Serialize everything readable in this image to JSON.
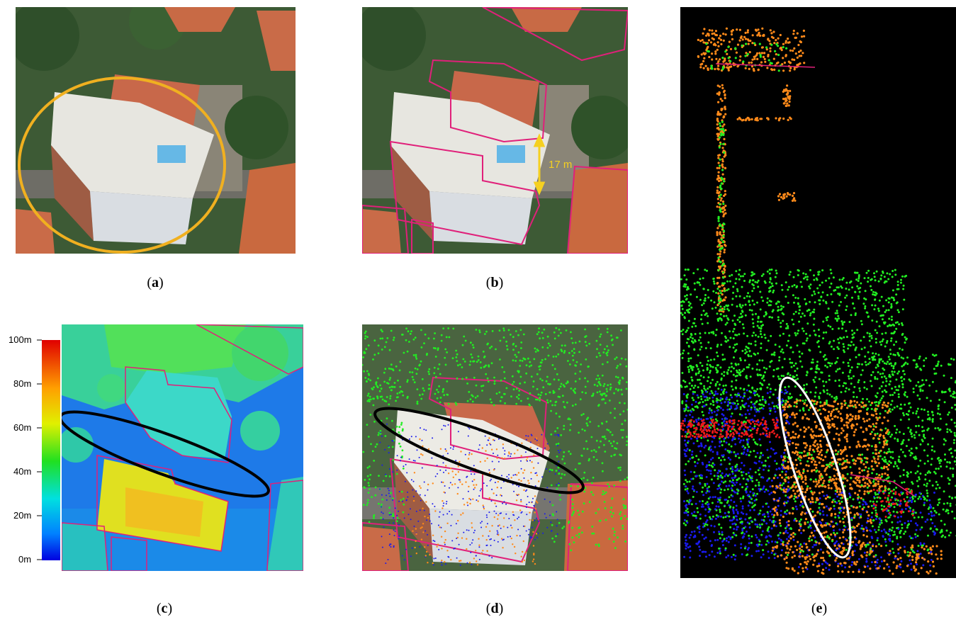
{
  "captions": {
    "a": "a",
    "b": "b",
    "c": "c",
    "d": "d",
    "e": "e"
  },
  "panel_b": {
    "measure_label": "17 m"
  },
  "panel_c": {
    "colorbar_ticks": [
      "100m",
      "80m",
      "60m",
      "40m",
      "20m",
      "0m"
    ]
  },
  "colors": {
    "highlight_ellipse": "#f0b020",
    "building_outline": "#e0207a",
    "measure_arrow": "#f5d020",
    "error_ellipse": "#000000",
    "pointcloud_ellipse": "#ffffff",
    "point_green": "#22ee22",
    "point_orange": "#ff8a1a",
    "point_blue": "#1a1aee",
    "point_red": "#ee1a1a"
  }
}
